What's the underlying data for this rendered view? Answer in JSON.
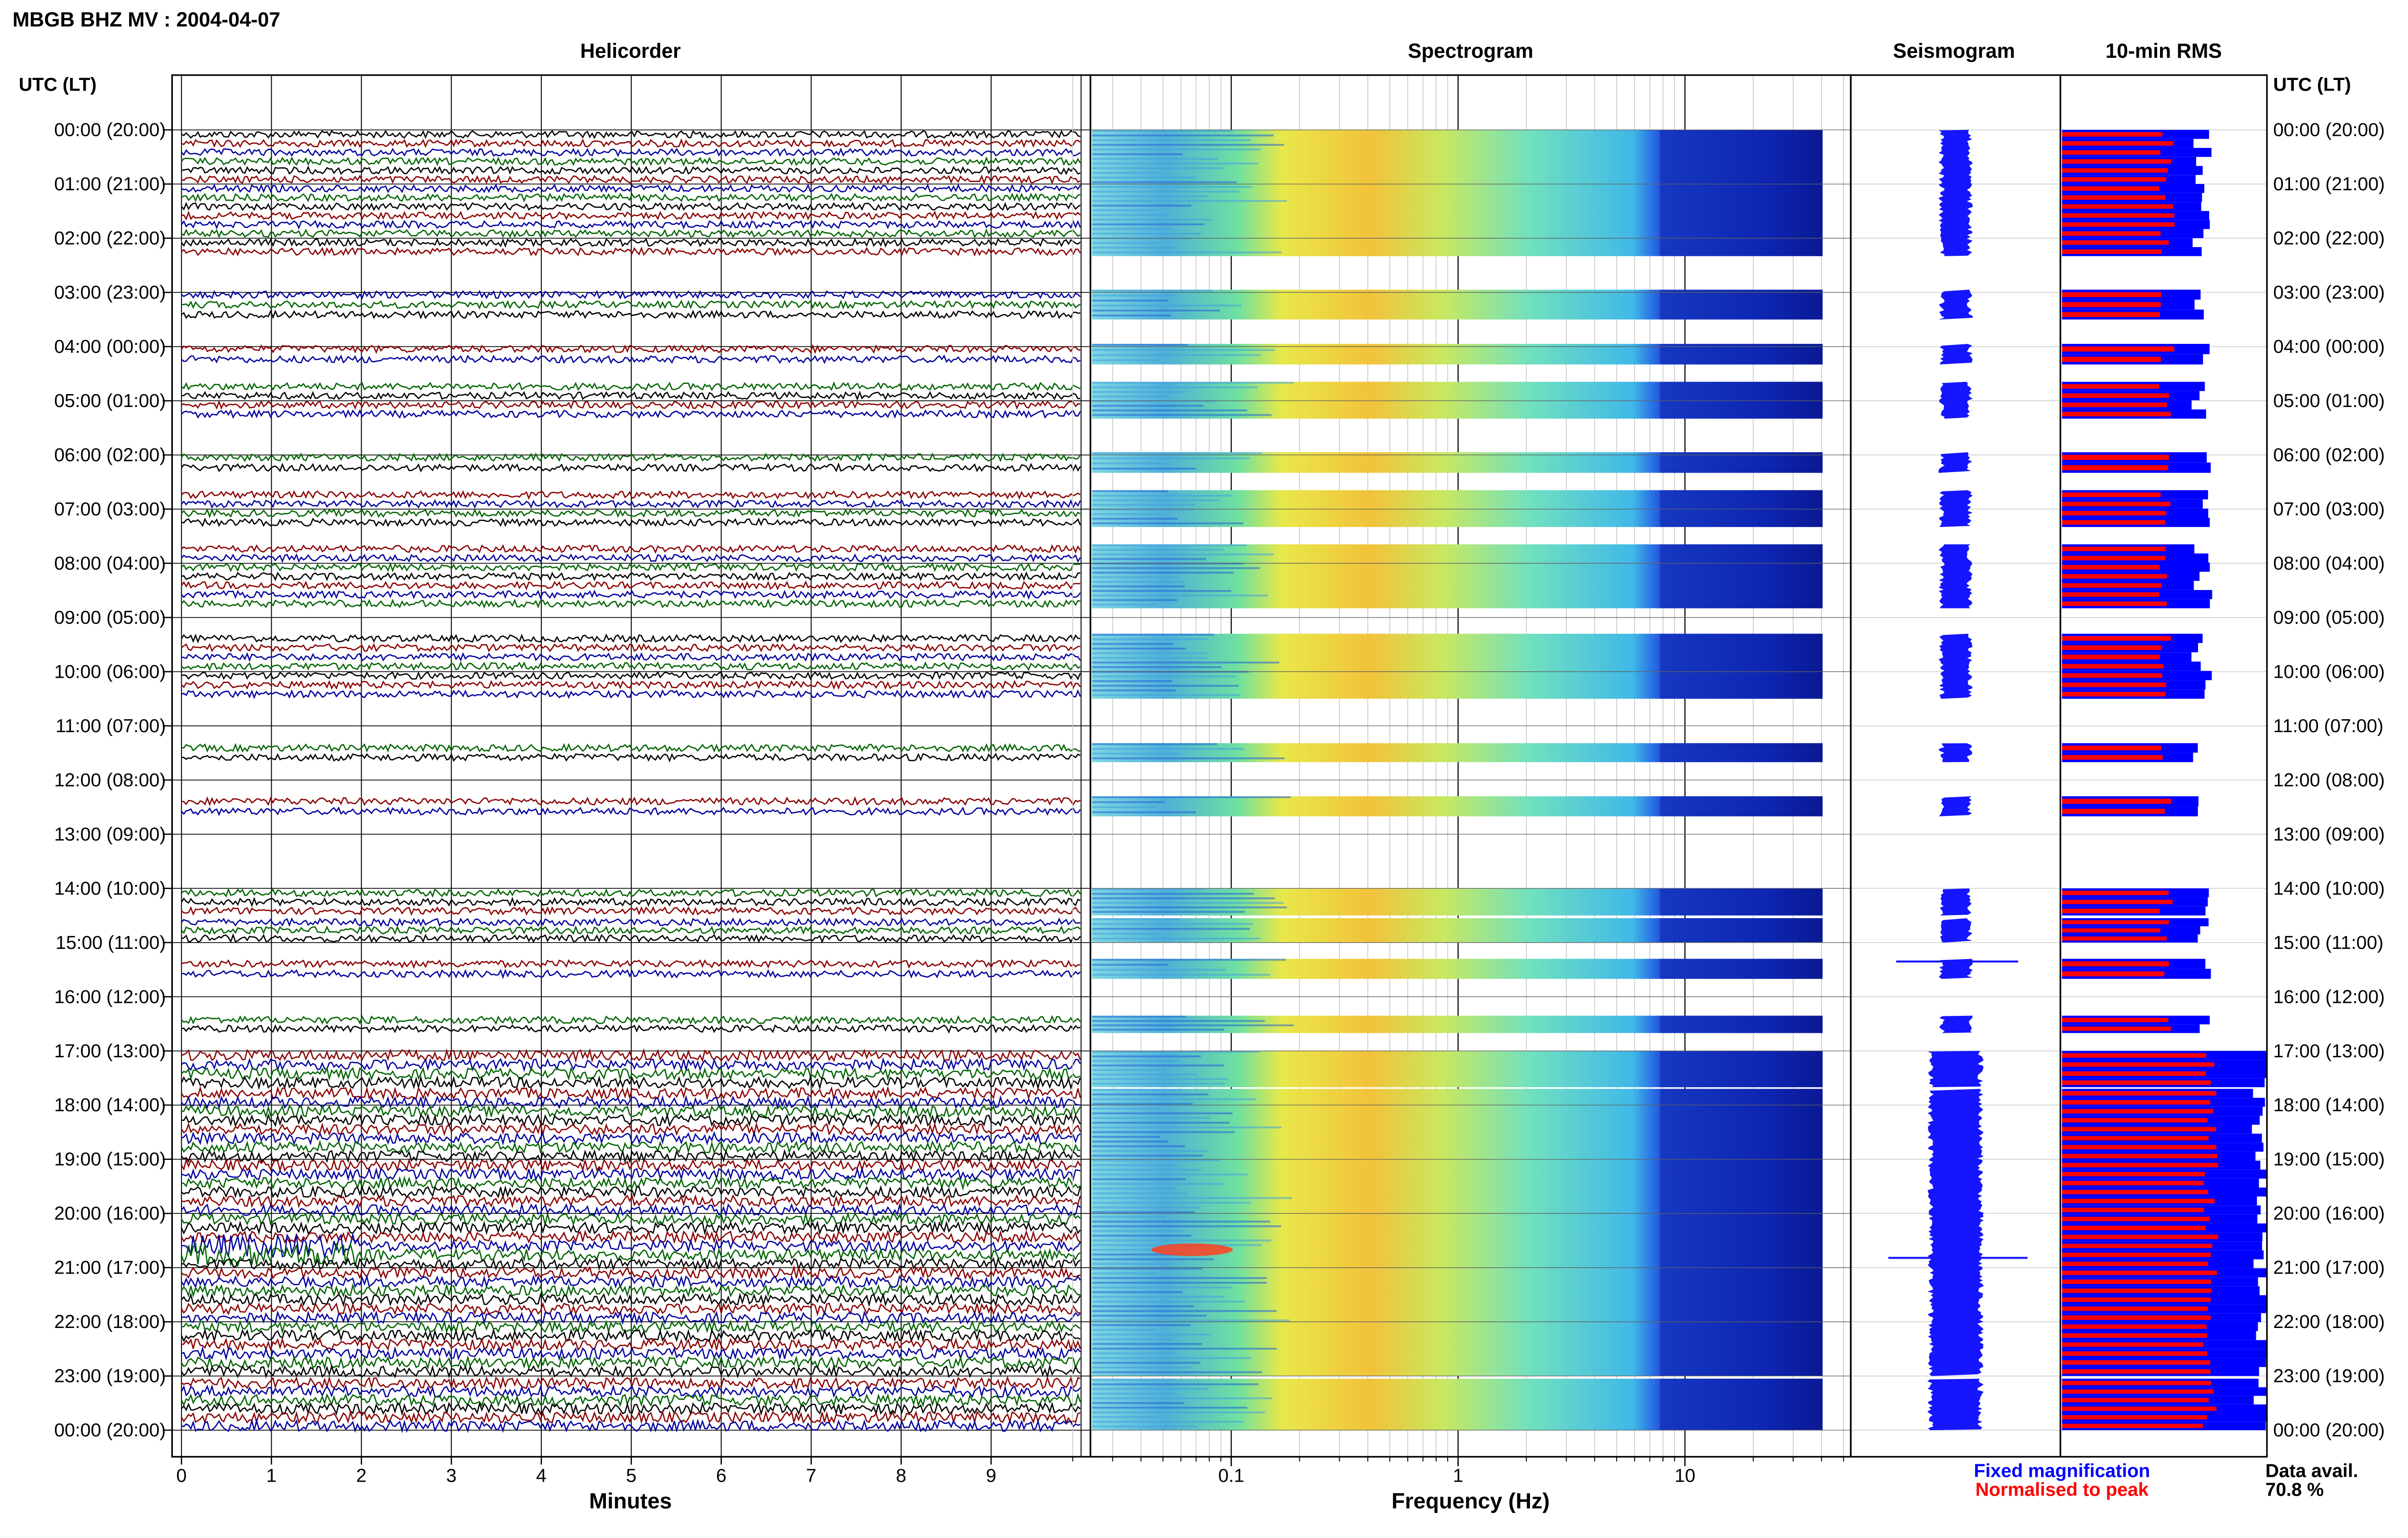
{
  "page_title": "MBGB BHZ MV : 2004-04-07",
  "panel_titles": {
    "helicorder": "Helicorder",
    "spectrogram": "Spectrogram",
    "seismogram": "Seismogram",
    "rms": "10-min RMS"
  },
  "time_axis_title": "UTC (LT)",
  "time_labels": [
    "00:00 (20:00)",
    "01:00 (21:00)",
    "02:00 (22:00)",
    "03:00 (23:00)",
    "04:00 (00:00)",
    "05:00 (01:00)",
    "06:00 (02:00)",
    "07:00 (03:00)",
    "08:00 (04:00)",
    "09:00 (05:00)",
    "10:00 (06:00)",
    "11:00 (07:00)",
    "12:00 (08:00)",
    "13:00 (09:00)",
    "14:00 (10:00)",
    "15:00 (11:00)",
    "16:00 (12:00)",
    "17:00 (13:00)",
    "18:00 (14:00)",
    "19:00 (15:00)",
    "20:00 (16:00)",
    "21:00 (17:00)",
    "22:00 (18:00)",
    "23:00 (19:00)",
    "00:00 (20:00)"
  ],
  "helicorder_axis": {
    "label": "Minutes",
    "ticks": [
      "0",
      "1",
      "2",
      "3",
      "4",
      "5",
      "6",
      "7",
      "8",
      "9"
    ]
  },
  "spectrogram_axis": {
    "label": "Frequency (Hz)",
    "ticks": [
      "0.1",
      "1",
      "10"
    ]
  },
  "legend": {
    "fixed": "Fixed magnification",
    "normalised": "Normalised to peak",
    "fixed_color": "#0000ff",
    "normalised_color": "#ff0000"
  },
  "data_availability": {
    "label": "Data avail.",
    "value": "70.8 %"
  },
  "colors": {
    "trace_cycle": [
      "#000000",
      "#8b0000",
      "#0000a0",
      "#006400"
    ],
    "spectro_low": "#00008b",
    "spectro_high": "#ff0000"
  },
  "chart_data": {
    "type": "heatmap",
    "title": "MBGB BHZ MV : 2004-04-07",
    "x_minutes_range": [
      0,
      10
    ],
    "x_frequency_range_hz": [
      0.02,
      50
    ],
    "frequency_scale": "log",
    "y_time_range_utc_hours": [
      0,
      24
    ],
    "data_availability_percent": 70.8,
    "segments_utc_hours": [
      [
        0.0,
        2.33
      ],
      [
        2.95,
        3.5
      ],
      [
        3.95,
        4.33
      ],
      [
        4.65,
        5.33
      ],
      [
        5.95,
        6.33
      ],
      [
        6.65,
        7.33
      ],
      [
        7.65,
        8.83
      ],
      [
        9.3,
        10.5
      ],
      [
        11.32,
        11.67
      ],
      [
        12.3,
        12.67
      ],
      [
        14.0,
        14.5
      ],
      [
        14.55,
        15.0
      ],
      [
        15.3,
        15.67
      ],
      [
        16.35,
        16.67
      ],
      [
        17.0,
        17.67
      ],
      [
        17.7,
        23.0
      ],
      [
        23.05,
        24.0
      ]
    ],
    "spectrogram_peak_frequency_hz": 0.3,
    "notable_events": [
      {
        "utc": "20:40",
        "frequency_hz": "0.05-0.1",
        "note": "strong low-frequency energy"
      },
      {
        "utc": "15:25",
        "note": "spike in seismogram"
      },
      {
        "utc": "20:50",
        "note": "spike in seismogram"
      }
    ]
  }
}
